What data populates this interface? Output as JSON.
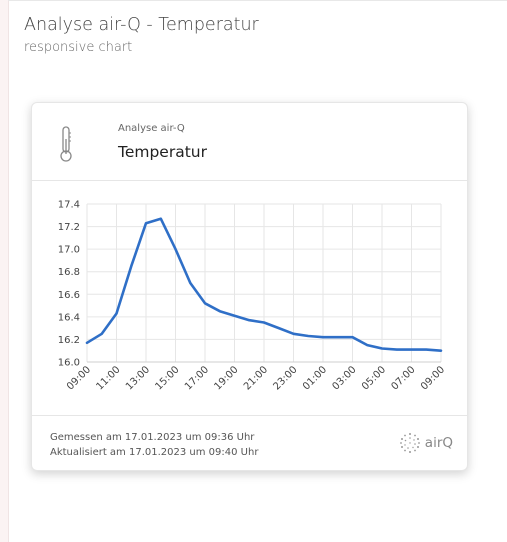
{
  "page": {
    "title": "Analyse air-Q - Temperatur",
    "subtitle": "responsive chart"
  },
  "card": {
    "icon": "thermometer-icon",
    "device": "Analyse air-Q",
    "title": "Temperatur",
    "measured": "Gemessen am 17.01.2023 um 09:36 Uhr",
    "updated": "Aktualisiert am 17.01.2023 um 09:40 Uhr",
    "logo_text": "airQ"
  },
  "colors": {
    "line": "#2f6fc7",
    "grid": "#e6e6e6"
  },
  "chart_data": {
    "type": "line",
    "x": [
      "09:00",
      "10:00",
      "11:00",
      "12:00",
      "13:00",
      "14:00",
      "15:00",
      "16:00",
      "17:00",
      "18:00",
      "19:00",
      "20:00",
      "21:00",
      "22:00",
      "23:00",
      "00:00",
      "01:00",
      "02:00",
      "03:00",
      "04:00",
      "05:00",
      "06:00",
      "07:00",
      "08:00",
      "09:00"
    ],
    "x_tick_labels": [
      "09:00",
      "11:00",
      "13:00",
      "15:00",
      "17:00",
      "19:00",
      "21:00",
      "23:00",
      "01:00",
      "03:00",
      "05:00",
      "07:00",
      "09:00"
    ],
    "series": [
      {
        "values": [
          16.17,
          16.25,
          16.43,
          16.85,
          17.23,
          17.27,
          17.0,
          16.7,
          16.52,
          16.45,
          16.41,
          16.37,
          16.35,
          16.3,
          16.25,
          16.23,
          16.22,
          16.22,
          16.22,
          16.15,
          16.12,
          16.11,
          16.11,
          16.11,
          16.1
        ]
      }
    ],
    "yticks": [
      "17.4",
      "17.2",
      "17.0",
      "16.8",
      "16.6",
      "16.4",
      "16.2",
      "16.0"
    ],
    "ylim": [
      16.0,
      17.4
    ],
    "grid": true,
    "legend": "none",
    "title": "",
    "xlabel": "",
    "ylabel": ""
  }
}
